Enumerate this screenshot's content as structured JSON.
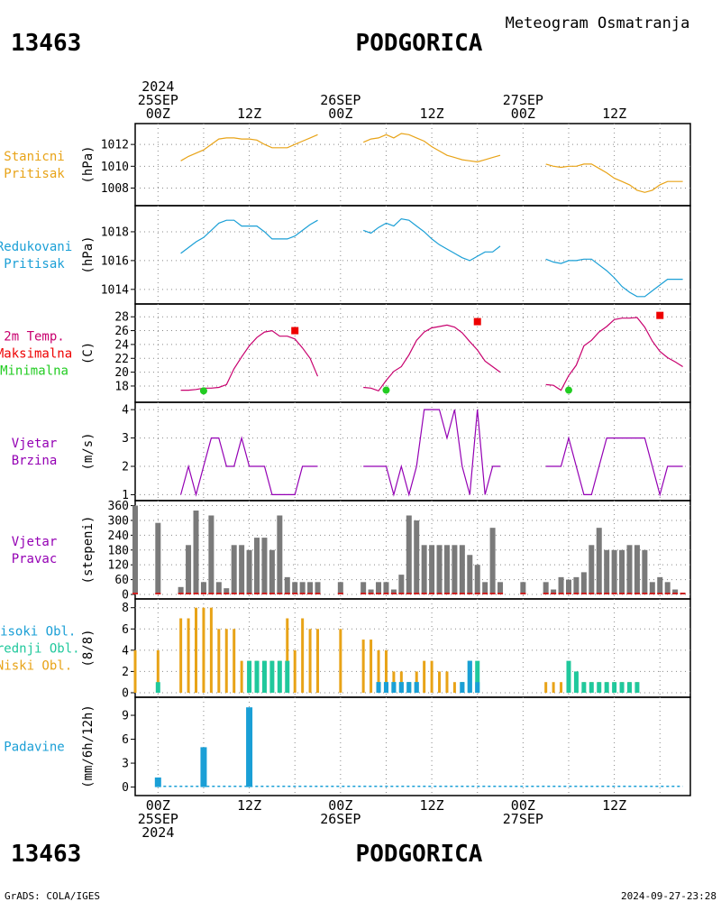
{
  "header": {
    "station_id": "13463",
    "station_name": "PODGORICA",
    "subtitle": "Meteogram Osmatranja"
  },
  "footer": {
    "credit": "GrADS: COLA/IGES",
    "timestamp": "2024-09-27-23:28"
  },
  "colors": {
    "station_pressure": "#e8a317",
    "reduced_pressure": "#1a9fd6",
    "temperature": "#c8006e",
    "max_temp": "#ee0000",
    "min_temp": "#22cc22",
    "wind": "#9400b4",
    "bars_gray": "#7a7a7a",
    "high_clouds": "#1a9fd6",
    "mid_clouds": "#20c89c",
    "low_clouds": "#e8a317",
    "precip": "#1a9fd6"
  },
  "time_axis": {
    "top_labels": [
      {
        "hour": 0,
        "lines": [
          "2024",
          "25SEP",
          "00Z"
        ]
      },
      {
        "hour": 12,
        "lines": [
          "12Z"
        ]
      },
      {
        "hour": 24,
        "lines": [
          "26SEP",
          "00Z"
        ]
      },
      {
        "hour": 36,
        "lines": [
          "12Z"
        ]
      },
      {
        "hour": 48,
        "lines": [
          "27SEP",
          "00Z"
        ]
      },
      {
        "hour": 60,
        "lines": [
          "12Z"
        ]
      }
    ],
    "bottom_labels": [
      {
        "hour": 0,
        "lines": [
          "00Z",
          "25SEP",
          "2024"
        ]
      },
      {
        "hour": 12,
        "lines": [
          "12Z"
        ]
      },
      {
        "hour": 24,
        "lines": [
          "00Z",
          "26SEP"
        ]
      },
      {
        "hour": 36,
        "lines": [
          "12Z"
        ]
      },
      {
        "hour": 48,
        "lines": [
          "00Z",
          "27SEP"
        ]
      },
      {
        "hour": 60,
        "lines": [
          "12Z"
        ]
      }
    ]
  },
  "chart_data": [
    {
      "id": "station-pressure",
      "type": "line",
      "label_lines": [
        "Stanicni",
        "Pritisak"
      ],
      "unit": "(hPa)",
      "ylim": [
        1006.8,
        1013.5
      ],
      "yticks": [
        1008,
        1010,
        1012
      ],
      "x_range_hours": [
        -3,
        70
      ],
      "series": [
        {
          "x": [
            3,
            4,
            5,
            6,
            7,
            8,
            9,
            10,
            11,
            12,
            13,
            14,
            15,
            16,
            17,
            18,
            19,
            20,
            21
          ],
          "values": [
            1010.5,
            1010.9,
            1011.2,
            1011.5,
            1012.0,
            1012.5,
            1012.6,
            1012.6,
            1012.5,
            1012.5,
            1012.4,
            1012.0,
            1011.7,
            1011.7,
            1011.7,
            1012.0,
            1012.3,
            1012.6,
            1012.9
          ]
        },
        {
          "x": [
            27,
            28,
            29,
            30,
            31,
            32,
            33,
            34,
            35,
            36,
            37,
            38,
            39,
            40,
            41,
            42,
            43,
            44,
            45
          ],
          "values": [
            1012.2,
            1012.5,
            1012.6,
            1012.9,
            1012.6,
            1013.0,
            1012.9,
            1012.6,
            1012.3,
            1011.8,
            1011.4,
            1011.0,
            1010.8,
            1010.6,
            1010.5,
            1010.4,
            1010.6,
            1010.8,
            1011.0
          ]
        },
        {
          "x": [
            51,
            52,
            53,
            54,
            55,
            56,
            57,
            58,
            59,
            60,
            61,
            62,
            63,
            64,
            65,
            66,
            67,
            68,
            69
          ],
          "values": [
            1010.2,
            1010.0,
            1009.9,
            1010.0,
            1010.0,
            1010.2,
            1010.2,
            1009.8,
            1009.4,
            1008.9,
            1008.6,
            1008.3,
            1007.8,
            1007.6,
            1007.8,
            1008.3,
            1008.6,
            1008.6,
            1008.6
          ]
        }
      ]
    },
    {
      "id": "reduced-pressure",
      "type": "line",
      "label_lines": [
        "Redukovani",
        "Pritisak"
      ],
      "unit": "(hPa)",
      "ylim": [
        1013.3,
        1019.5
      ],
      "yticks": [
        1014,
        1016,
        1018
      ],
      "x_range_hours": [
        -3,
        70
      ],
      "series": [
        {
          "x": [
            3,
            4,
            5,
            6,
            7,
            8,
            9,
            10,
            11,
            12,
            13,
            14,
            15,
            16,
            17,
            18,
            19,
            20,
            21
          ],
          "values": [
            1016.5,
            1016.9,
            1017.3,
            1017.6,
            1018.1,
            1018.6,
            1018.8,
            1018.8,
            1018.4,
            1018.4,
            1018.4,
            1018.0,
            1017.5,
            1017.5,
            1017.5,
            1017.7,
            1018.1,
            1018.5,
            1018.8
          ]
        },
        {
          "x": [
            27,
            28,
            29,
            30,
            31,
            32,
            33,
            34,
            35,
            36,
            37,
            38,
            39,
            40,
            41,
            42,
            43,
            44,
            45
          ],
          "values": [
            1018.1,
            1017.9,
            1018.3,
            1018.6,
            1018.4,
            1018.9,
            1018.8,
            1018.4,
            1018.0,
            1017.5,
            1017.1,
            1016.8,
            1016.5,
            1016.2,
            1016.0,
            1016.3,
            1016.6,
            1016.6,
            1017.0
          ]
        },
        {
          "x": [
            51,
            52,
            53,
            54,
            55,
            56,
            57,
            58,
            59,
            60,
            61,
            62,
            63,
            64,
            65,
            66,
            67,
            68,
            69
          ],
          "values": [
            1016.1,
            1015.9,
            1015.8,
            1016.0,
            1016.0,
            1016.1,
            1016.1,
            1015.7,
            1015.3,
            1014.8,
            1014.2,
            1013.8,
            1013.5,
            1013.5,
            1013.9,
            1014.3,
            1014.7,
            1014.7,
            1014.7
          ]
        }
      ]
    },
    {
      "id": "temperature",
      "type": "line",
      "label_lines": [
        "2m Temp.",
        "Maksimalna",
        "Minimalna"
      ],
      "unit": "(C)",
      "ylim": [
        16.3,
        29.2
      ],
      "yticks": [
        18,
        20,
        22,
        24,
        26,
        28
      ],
      "x_range_hours": [
        -3,
        70
      ],
      "series": [
        {
          "x": [
            3,
            4,
            5,
            6,
            7,
            8,
            9,
            10,
            11,
            12,
            13,
            14,
            15,
            16,
            17,
            18,
            19,
            20,
            21
          ],
          "values": [
            17.4,
            17.4,
            17.5,
            17.7,
            17.7,
            17.8,
            18.2,
            20.5,
            22.2,
            23.8,
            25.0,
            25.8,
            26.0,
            25.2,
            25.2,
            24.8,
            23.5,
            22.0,
            19.4
          ]
        },
        {
          "x": [
            27,
            28,
            29,
            30,
            31,
            32,
            33,
            34,
            35,
            36,
            37,
            38,
            39,
            40,
            41,
            42,
            43,
            44,
            45
          ],
          "values": [
            17.8,
            17.7,
            17.3,
            18.8,
            20.1,
            20.8,
            22.5,
            24.6,
            25.8,
            26.4,
            26.6,
            26.8,
            26.5,
            25.7,
            24.4,
            23.2,
            21.6,
            20.8,
            20.0
          ]
        },
        {
          "x": [
            51,
            52,
            53,
            54,
            55,
            56,
            57,
            58,
            59,
            60,
            61,
            62,
            63,
            64,
            65,
            66,
            67,
            68,
            69
          ],
          "values": [
            18.2,
            18.1,
            17.4,
            19.5,
            21.0,
            23.8,
            24.6,
            25.8,
            26.6,
            27.6,
            27.8,
            27.8,
            27.9,
            26.5,
            24.5,
            23.0,
            22.1,
            21.5,
            20.8
          ]
        }
      ],
      "max_points": [
        {
          "x": 18,
          "value": 26.0
        },
        {
          "x": 42,
          "value": 27.3
        },
        {
          "x": 66,
          "value": 28.2
        }
      ],
      "min_points": [
        {
          "x": 6,
          "value": 17.3
        },
        {
          "x": 30,
          "value": 17.4
        },
        {
          "x": 54,
          "value": 17.4
        }
      ]
    },
    {
      "id": "wind-speed",
      "type": "line",
      "label_lines": [
        "Vjetar",
        "Brzina"
      ],
      "unit": "(m/s)",
      "ylim": [
        0.95,
        4.1
      ],
      "yticks": [
        1,
        2,
        3,
        4
      ],
      "x_range_hours": [
        -3,
        70
      ],
      "series": [
        {
          "x": [
            3,
            4,
            5,
            6,
            7,
            8,
            9,
            10,
            11,
            12,
            13,
            14,
            15,
            16,
            17,
            18,
            19,
            20,
            21
          ],
          "values": [
            1,
            2,
            1,
            2,
            3,
            3,
            2,
            2,
            3,
            2,
            2,
            2,
            1,
            1,
            1,
            1,
            2,
            2,
            2
          ]
        },
        {
          "x": [
            27,
            28,
            29,
            30,
            31,
            32,
            33,
            34,
            35,
            36,
            37,
            38,
            39,
            40,
            41,
            42,
            43,
            44,
            45
          ],
          "values": [
            2,
            2,
            2,
            2,
            1,
            2,
            1,
            2,
            4,
            4,
            4,
            3,
            4,
            2,
            1,
            4,
            1,
            2,
            2
          ]
        },
        {
          "x": [
            51,
            52,
            53,
            54,
            55,
            56,
            57,
            58,
            59,
            60,
            61,
            62,
            63,
            64,
            65,
            66,
            67,
            68,
            69
          ],
          "values": [
            2,
            2,
            2,
            3,
            2,
            1,
            1,
            2,
            3,
            3,
            3,
            3,
            3,
            3,
            2,
            1,
            2,
            2,
            2
          ]
        }
      ]
    },
    {
      "id": "wind-direction",
      "type": "bar",
      "label_lines": [
        "Vjetar",
        "Pravac"
      ],
      "unit": "(stepeni)",
      "ylim": [
        0,
        362
      ],
      "yticks": [
        0,
        60,
        120,
        180,
        240,
        300,
        360
      ],
      "x_range_hours": [
        -3,
        70
      ],
      "x": [
        -3,
        0,
        3,
        4,
        5,
        6,
        7,
        8,
        9,
        10,
        11,
        12,
        13,
        14,
        15,
        16,
        17,
        18,
        19,
        20,
        21,
        24,
        27,
        28,
        29,
        30,
        31,
        32,
        33,
        34,
        35,
        36,
        37,
        38,
        39,
        40,
        41,
        42,
        43,
        44,
        45,
        48,
        51,
        52,
        53,
        54,
        55,
        56,
        57,
        58,
        59,
        60,
        61,
        62,
        63,
        64,
        65,
        66,
        67,
        68,
        69
      ],
      "values": [
        360,
        290,
        30,
        200,
        340,
        50,
        320,
        50,
        25,
        200,
        200,
        180,
        230,
        230,
        180,
        320,
        70,
        50,
        50,
        50,
        50,
        50,
        50,
        20,
        50,
        50,
        20,
        80,
        320,
        300,
        200,
        200,
        200,
        200,
        200,
        200,
        160,
        120,
        50,
        270,
        50,
        50,
        50,
        20,
        70,
        60,
        70,
        90,
        200,
        270,
        180,
        180,
        180,
        200,
        200,
        180,
        50,
        70,
        50,
        20,
        0
      ]
    },
    {
      "id": "clouds",
      "type": "bar",
      "label_lines": [
        "Visoki Obl.",
        "Srednji Obl.",
        "Niski Obl."
      ],
      "unit": "(8/8)",
      "ylim": [
        0,
        8.4
      ],
      "yticks": [
        0,
        2,
        4,
        6,
        8
      ],
      "x_range_hours": [
        -3,
        70
      ],
      "x": [
        -3,
        0,
        3,
        4,
        5,
        6,
        7,
        8,
        9,
        10,
        11,
        12,
        13,
        14,
        15,
        16,
        17,
        18,
        19,
        20,
        21,
        24,
        27,
        28,
        29,
        30,
        31,
        32,
        33,
        34,
        35,
        36,
        37,
        38,
        39,
        40,
        41,
        42,
        43,
        44,
        45,
        48,
        51,
        52,
        53,
        54,
        55,
        56,
        57,
        58,
        59,
        60,
        61,
        62,
        63,
        64,
        65,
        66,
        67,
        68,
        69
      ],
      "series": [
        {
          "name": "Visoki Obl.",
          "values": [
            0,
            0,
            0,
            0,
            0,
            0,
            0,
            0,
            0,
            0,
            0,
            0,
            0,
            0,
            0,
            0,
            0,
            0,
            0,
            0,
            0,
            0,
            0,
            0,
            1,
            1,
            1,
            1,
            1,
            1,
            0,
            0,
            0,
            0,
            0,
            1,
            3,
            1,
            0,
            0,
            0,
            0,
            0,
            0,
            0,
            0,
            0,
            0,
            0,
            0,
            0,
            0,
            0,
            0,
            0,
            0,
            0,
            0,
            0,
            0,
            0
          ]
        },
        {
          "name": "Srednji Obl.",
          "values": [
            0,
            1,
            0,
            0,
            0,
            0,
            0,
            0,
            0,
            0,
            0,
            3,
            3,
            3,
            3,
            3,
            3,
            0,
            0,
            0,
            0,
            0,
            0,
            0,
            1,
            1,
            1,
            1,
            1,
            1,
            0,
            0,
            0,
            0,
            0,
            1,
            3,
            3,
            0,
            0,
            0,
            0,
            0,
            0,
            0,
            3,
            2,
            1,
            1,
            1,
            1,
            1,
            1,
            1,
            1,
            0,
            0,
            0,
            0,
            0,
            0
          ]
        },
        {
          "name": "Niski Obl.",
          "values": [
            4,
            4,
            7,
            7,
            8,
            8,
            8,
            6,
            6,
            6,
            3,
            3,
            3,
            3,
            3,
            3,
            7,
            4,
            7,
            6,
            6,
            6,
            5,
            5,
            4,
            4,
            2,
            2,
            1,
            2,
            3,
            3,
            2,
            2,
            1,
            1,
            1,
            1,
            0,
            0,
            0,
            0,
            1,
            1,
            1,
            1,
            1,
            1,
            1,
            1,
            1,
            1,
            1,
            1,
            1,
            0,
            0,
            0,
            0,
            0,
            0
          ]
        }
      ]
    },
    {
      "id": "precipitation",
      "type": "bar",
      "label_lines": [
        "Padavine"
      ],
      "unit": "(mm/6h/12h)",
      "ylim": [
        -0.5,
        10.7
      ],
      "yticks": [
        0,
        3,
        6,
        9
      ],
      "x_range_hours": [
        -3,
        70
      ],
      "x": [
        0,
        6,
        12
      ],
      "values": [
        1.2,
        5.0,
        10.0
      ],
      "trace": 0.1
    }
  ]
}
